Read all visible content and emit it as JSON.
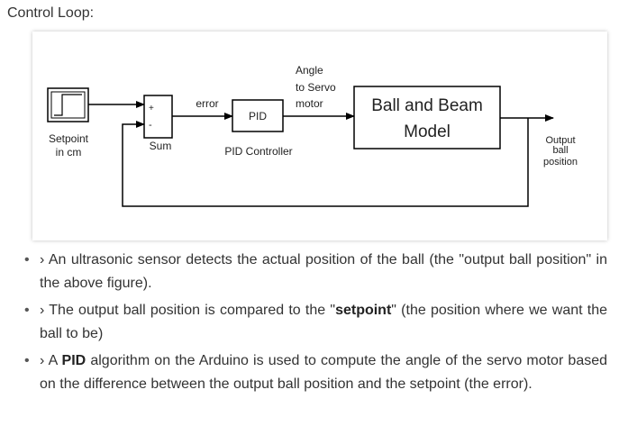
{
  "heading": "Control Loop:",
  "diagram": {
    "setpoint_label_1": "Setpoint",
    "setpoint_label_2": "in cm",
    "sum_label": "Sum",
    "sum_plus": "+",
    "sum_minus": "-",
    "error_label": "error",
    "pid_block": "PID",
    "pid_caption": "PID Controller",
    "angle_label_1": "Angle",
    "angle_label_2": "to Servo",
    "angle_label_3": "motor",
    "model_line_1": "Ball and Beam",
    "model_line_2": "Model",
    "output_label_1": "Output",
    "output_label_2": "ball",
    "output_label_3": "position"
  },
  "bullets": [
    {
      "marker": "›",
      "parts": [
        "An ultrasonic sensor detects the actual position of the ball (the \"output ball position\" in the above figure)."
      ]
    },
    {
      "marker": "›",
      "before": "The output ball position is compared to the \"",
      "bold": "setpoint",
      "after": "\" (the position where we want the ball to be)"
    },
    {
      "marker": "›",
      "before": "A ",
      "bold": "PID",
      "after": " algorithm on the Arduino is used to compute the angle of the servo motor based on the difference between the output ball position and the setpoint (the error)."
    }
  ]
}
